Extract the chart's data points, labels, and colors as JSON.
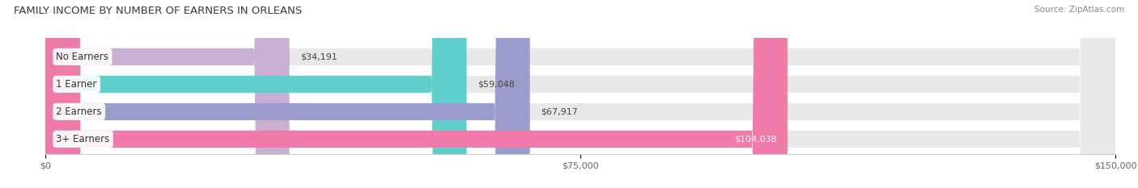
{
  "title": "FAMILY INCOME BY NUMBER OF EARNERS IN ORLEANS",
  "source": "Source: ZipAtlas.com",
  "categories": [
    "No Earners",
    "1 Earner",
    "2 Earners",
    "3+ Earners"
  ],
  "values": [
    34191,
    59048,
    67917,
    104038
  ],
  "labels": [
    "$34,191",
    "$59,048",
    "$67,917",
    "$104,038"
  ],
  "bar_colors": [
    "#c9afd1",
    "#5ecfcb",
    "#9b9bcc",
    "#f07aaa"
  ],
  "bar_bg_color": "#e8e8e8",
  "xlim": [
    0,
    150000
  ],
  "xticks": [
    0,
    75000,
    150000
  ],
  "xtick_labels": [
    "$0",
    "$75,000",
    "$150,000"
  ],
  "fig_bg_color": "#ffffff",
  "bar_height": 0.62,
  "title_fontsize": 9.5,
  "source_fontsize": 7.5,
  "label_fontsize": 8,
  "category_fontsize": 8.5,
  "label_inside_threshold": 95000
}
